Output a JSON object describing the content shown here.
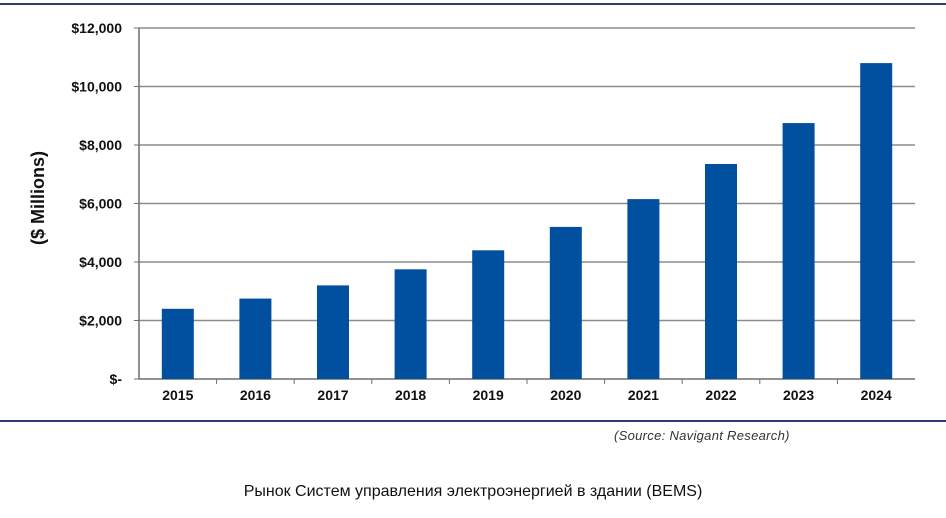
{
  "chart_data": {
    "type": "bar",
    "categories": [
      "2015",
      "2016",
      "2017",
      "2018",
      "2019",
      "2020",
      "2021",
      "2022",
      "2023",
      "2024"
    ],
    "values": [
      2400,
      2750,
      3200,
      3750,
      4400,
      5200,
      6150,
      7350,
      8750,
      10800
    ],
    "ylabel": "($ Millions)",
    "ylim": [
      0,
      12000
    ],
    "yticks": [
      0,
      2000,
      4000,
      6000,
      8000,
      10000,
      12000
    ],
    "ytick_labels": [
      "$-",
      "$2,000",
      "$4,000",
      "$6,000",
      "$8,000",
      "$10,000",
      "$12,000"
    ],
    "grid": true,
    "bar_color": "#00509f",
    "grid_color": "#8c8c8c",
    "axis_color": "#6f6f6f"
  },
  "source": "(Source: Navigant Research)",
  "caption": "Рынок Систем управления электроэнергией в здании (BEMS)"
}
